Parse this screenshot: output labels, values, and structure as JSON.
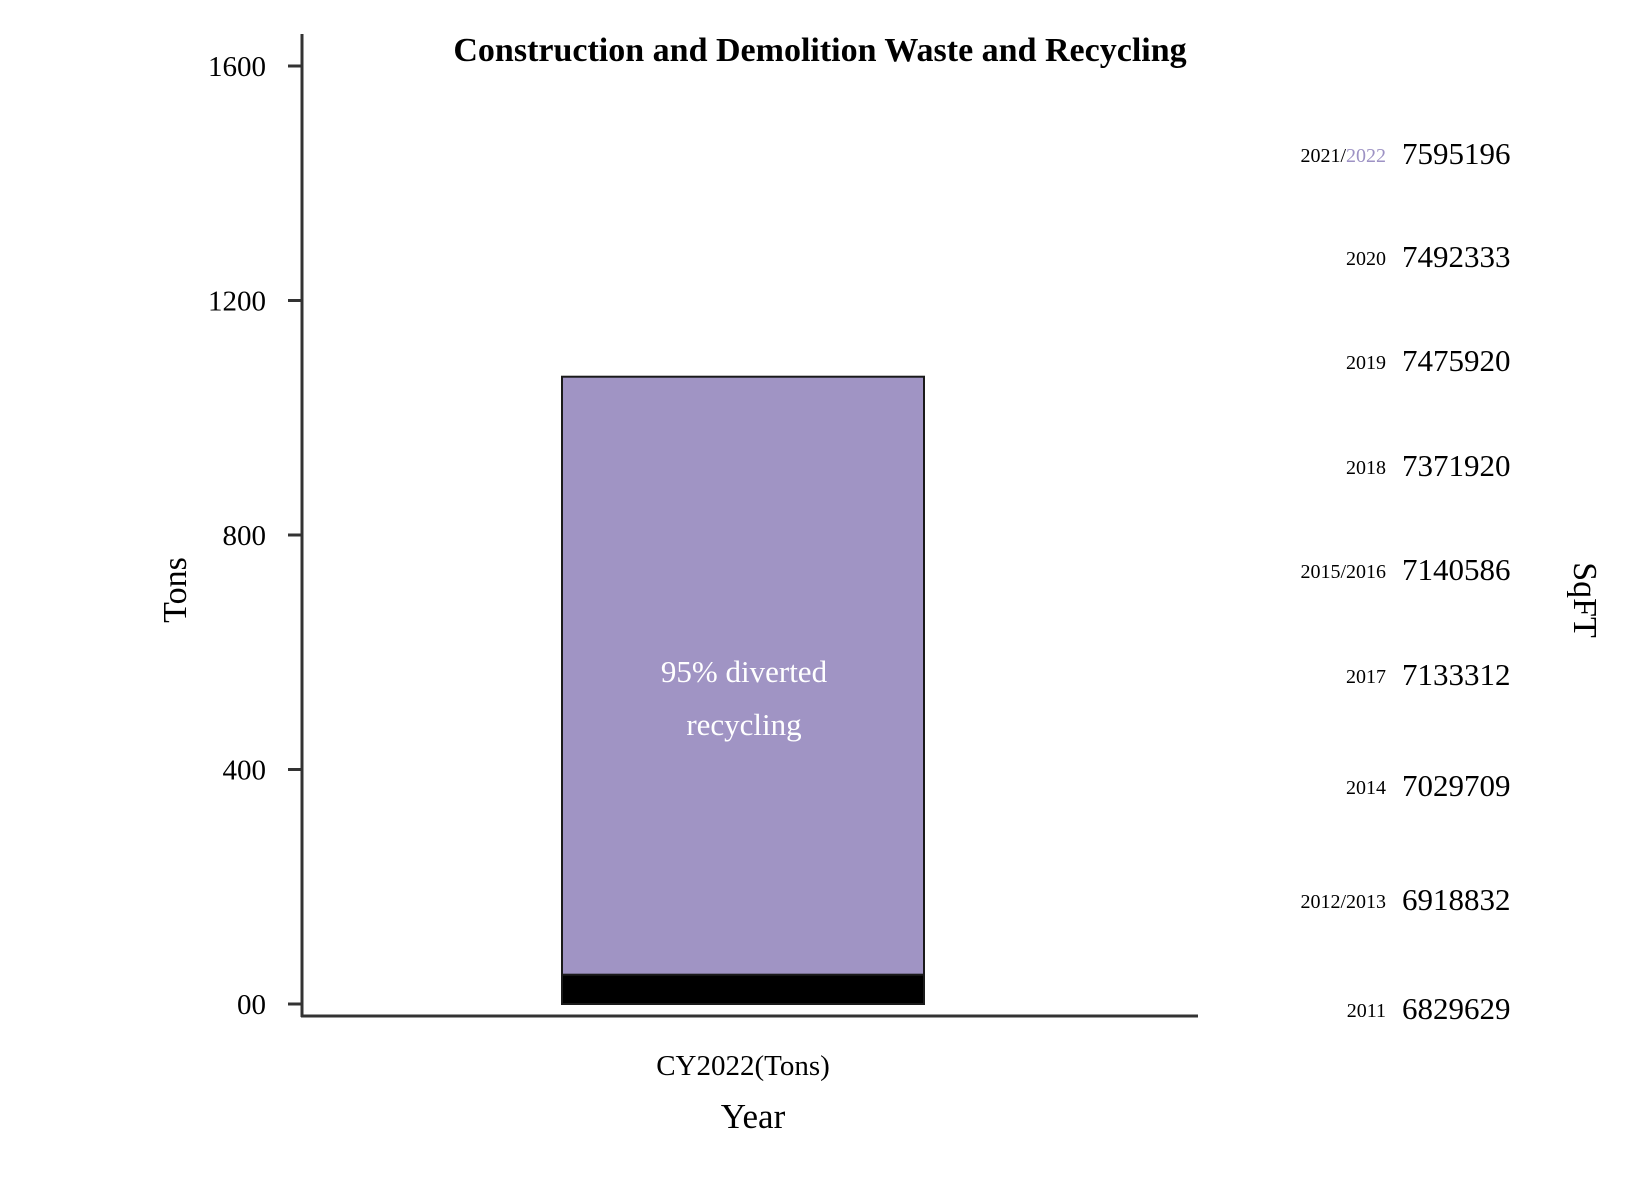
{
  "chart_data": {
    "type": "bar",
    "title": "Construction and Demolition Waste and Recycling",
    "xlabel": "Year",
    "ylabel": "Tons",
    "ylim": [
      0,
      1600
    ],
    "yticks": [
      {
        "value": 0,
        "label": "00"
      },
      {
        "value": 400,
        "label": "400"
      },
      {
        "value": 800,
        "label": "800"
      },
      {
        "value": 1200,
        "label": "1200"
      },
      {
        "value": 1600,
        "label": "1600"
      }
    ],
    "categories": [
      "CY2022(Tons)"
    ],
    "series": [
      {
        "name": "",
        "color": "#000000",
        "values": [
          50
        ]
      },
      {
        "name": "",
        "color": "#a094c4",
        "values": [
          1020
        ]
      }
    ],
    "annotations": {
      "bar_label_line1": "95% diverted",
      "bar_label_line2": "recycling"
    },
    "grid": false,
    "secondary_label": "SqFT",
    "sqft": [
      {
        "year": "2021/",
        "year_highlight": "2022",
        "value": "7595196"
      },
      {
        "year": "2020",
        "year_highlight": "",
        "value": "7492333"
      },
      {
        "year": "2019",
        "year_highlight": "",
        "value": "7475920"
      },
      {
        "year": "2018",
        "year_highlight": "",
        "value": "7371920"
      },
      {
        "year": "2015/2016",
        "year_highlight": "",
        "value": "7140586"
      },
      {
        "year": "2017",
        "year_highlight": "",
        "value": "7133312"
      },
      {
        "year": "2014",
        "year_highlight": "",
        "value": "7029709"
      },
      {
        "year": "2012/2013",
        "year_highlight": "",
        "value": "6918832"
      },
      {
        "year": "2011",
        "year_highlight": "",
        "value": "6829629"
      }
    ],
    "colors": {
      "recycled": "#a094c4",
      "landfill": "#000000",
      "year_highlight": "#9d92c4",
      "axis": "#333333"
    }
  }
}
